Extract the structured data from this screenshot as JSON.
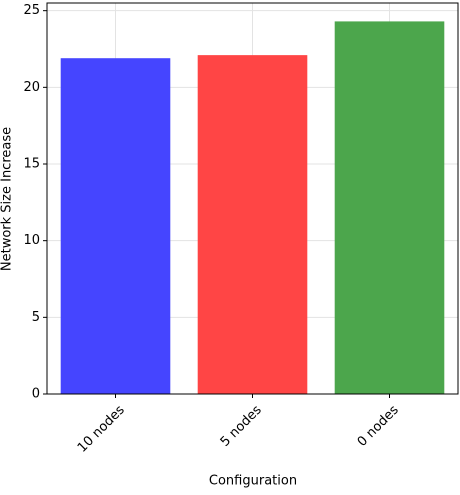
{
  "chart_data": {
    "type": "bar",
    "x_label": "Configuration",
    "y_label": "Network Size Increase",
    "categories": [
      "10 nodes",
      "5 nodes",
      "0 nodes"
    ],
    "values": [
      21.9,
      22.1,
      24.3
    ],
    "colors": [
      "#4545ff",
      "#ff4545",
      "#4ca64c"
    ],
    "ylim": [
      0,
      25.5
    ],
    "yticks": [
      0,
      5,
      10,
      15,
      20,
      25
    ],
    "grid": true
  }
}
